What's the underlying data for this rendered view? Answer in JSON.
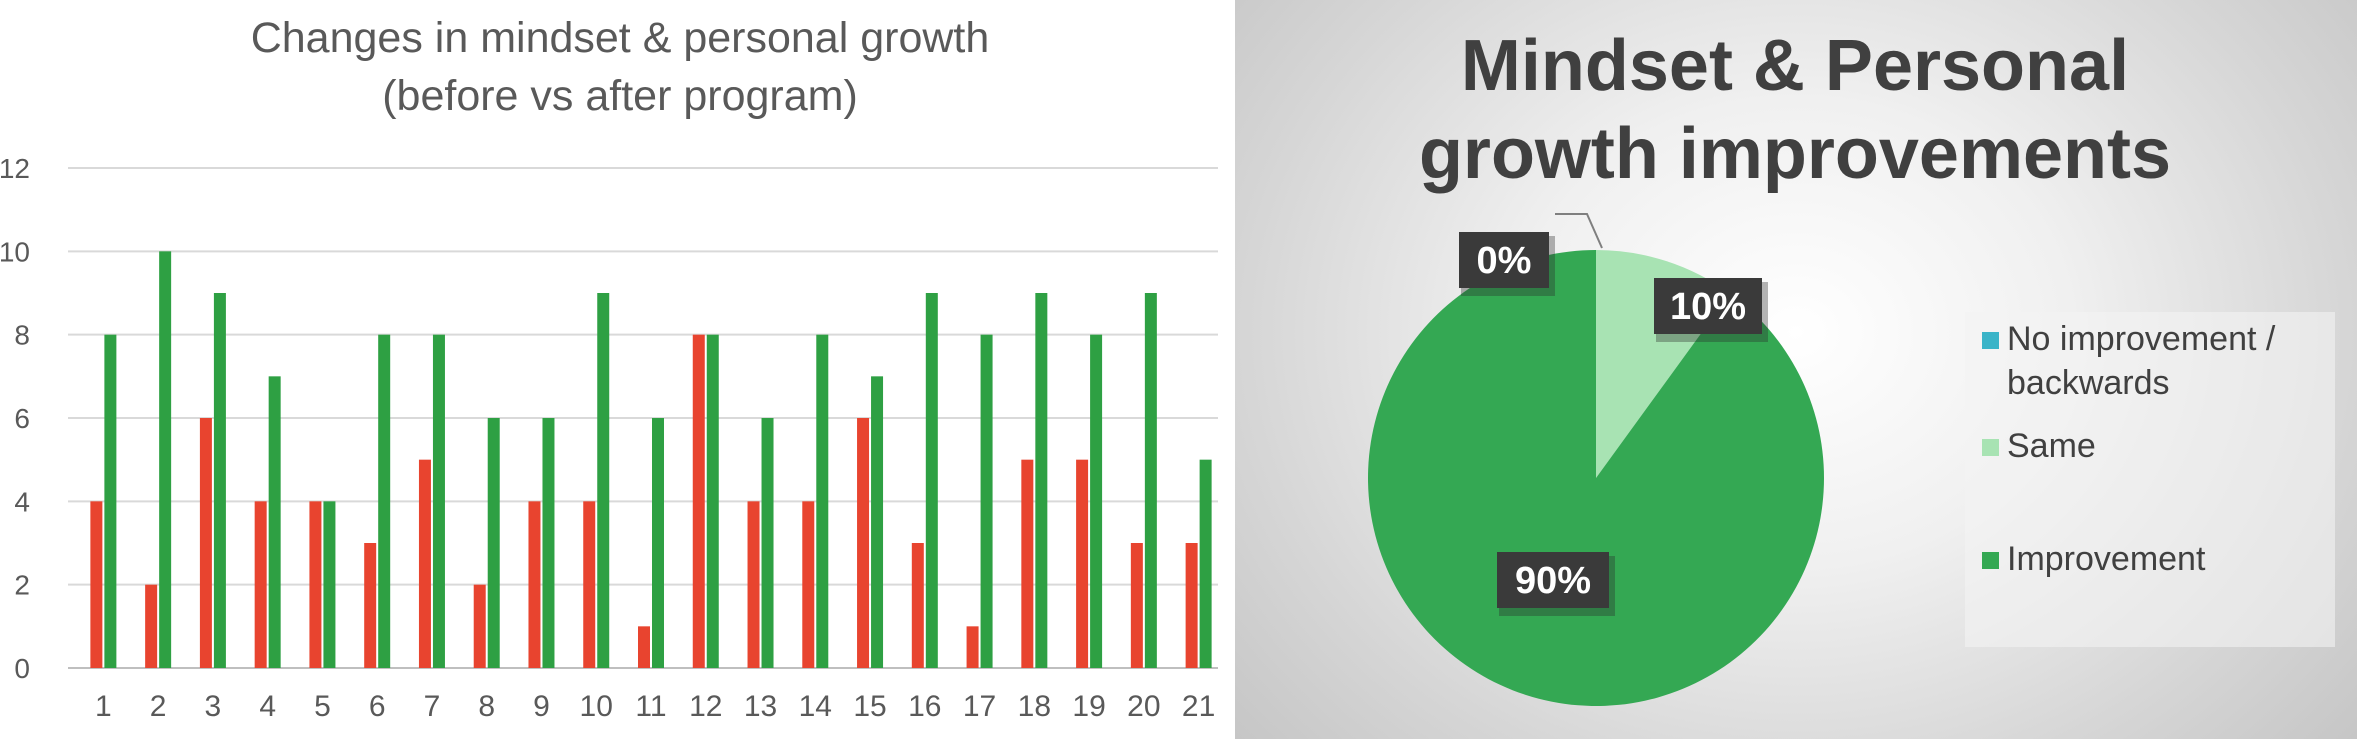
{
  "chart_data": [
    {
      "type": "bar",
      "title": "Changes in mindset & personal growth",
      "subtitle": "(before vs after program)",
      "categories": [
        "1",
        "2",
        "3",
        "4",
        "5",
        "6",
        "7",
        "8",
        "9",
        "10",
        "11",
        "12",
        "13",
        "14",
        "15",
        "16",
        "17",
        "18",
        "19",
        "20",
        "21"
      ],
      "series": [
        {
          "color": "#e8442f",
          "values": [
            4,
            2,
            6,
            4,
            4,
            3,
            5,
            2,
            4,
            4,
            1,
            8,
            4,
            4,
            6,
            3,
            1,
            5,
            5,
            3,
            3
          ]
        },
        {
          "color": "#2ea043",
          "values": [
            8,
            10,
            9,
            7,
            4,
            8,
            8,
            6,
            6,
            9,
            6,
            8,
            6,
            8,
            7,
            9,
            8,
            9,
            8,
            9,
            5
          ]
        }
      ],
      "ylim": [
        0,
        12
      ],
      "yticks": [
        0,
        2,
        4,
        6,
        8,
        10,
        12
      ],
      "grid": true,
      "legend": "none"
    },
    {
      "type": "pie",
      "title_line1": "Mindset & Personal",
      "title_line2": "growth improvements",
      "slices": [
        {
          "label": "No improvement / backwards",
          "legend_line1": "No improvement /",
          "legend_line2": "backwards",
          "value": 0,
          "display": "0%",
          "color": "#3ab4c8"
        },
        {
          "label": "Same",
          "value": 10,
          "display": "10%",
          "color": "#a8e3b3"
        },
        {
          "label": "Improvement",
          "value": 90,
          "display": "90%",
          "color": "#34a853"
        }
      ],
      "legend": "right"
    }
  ]
}
